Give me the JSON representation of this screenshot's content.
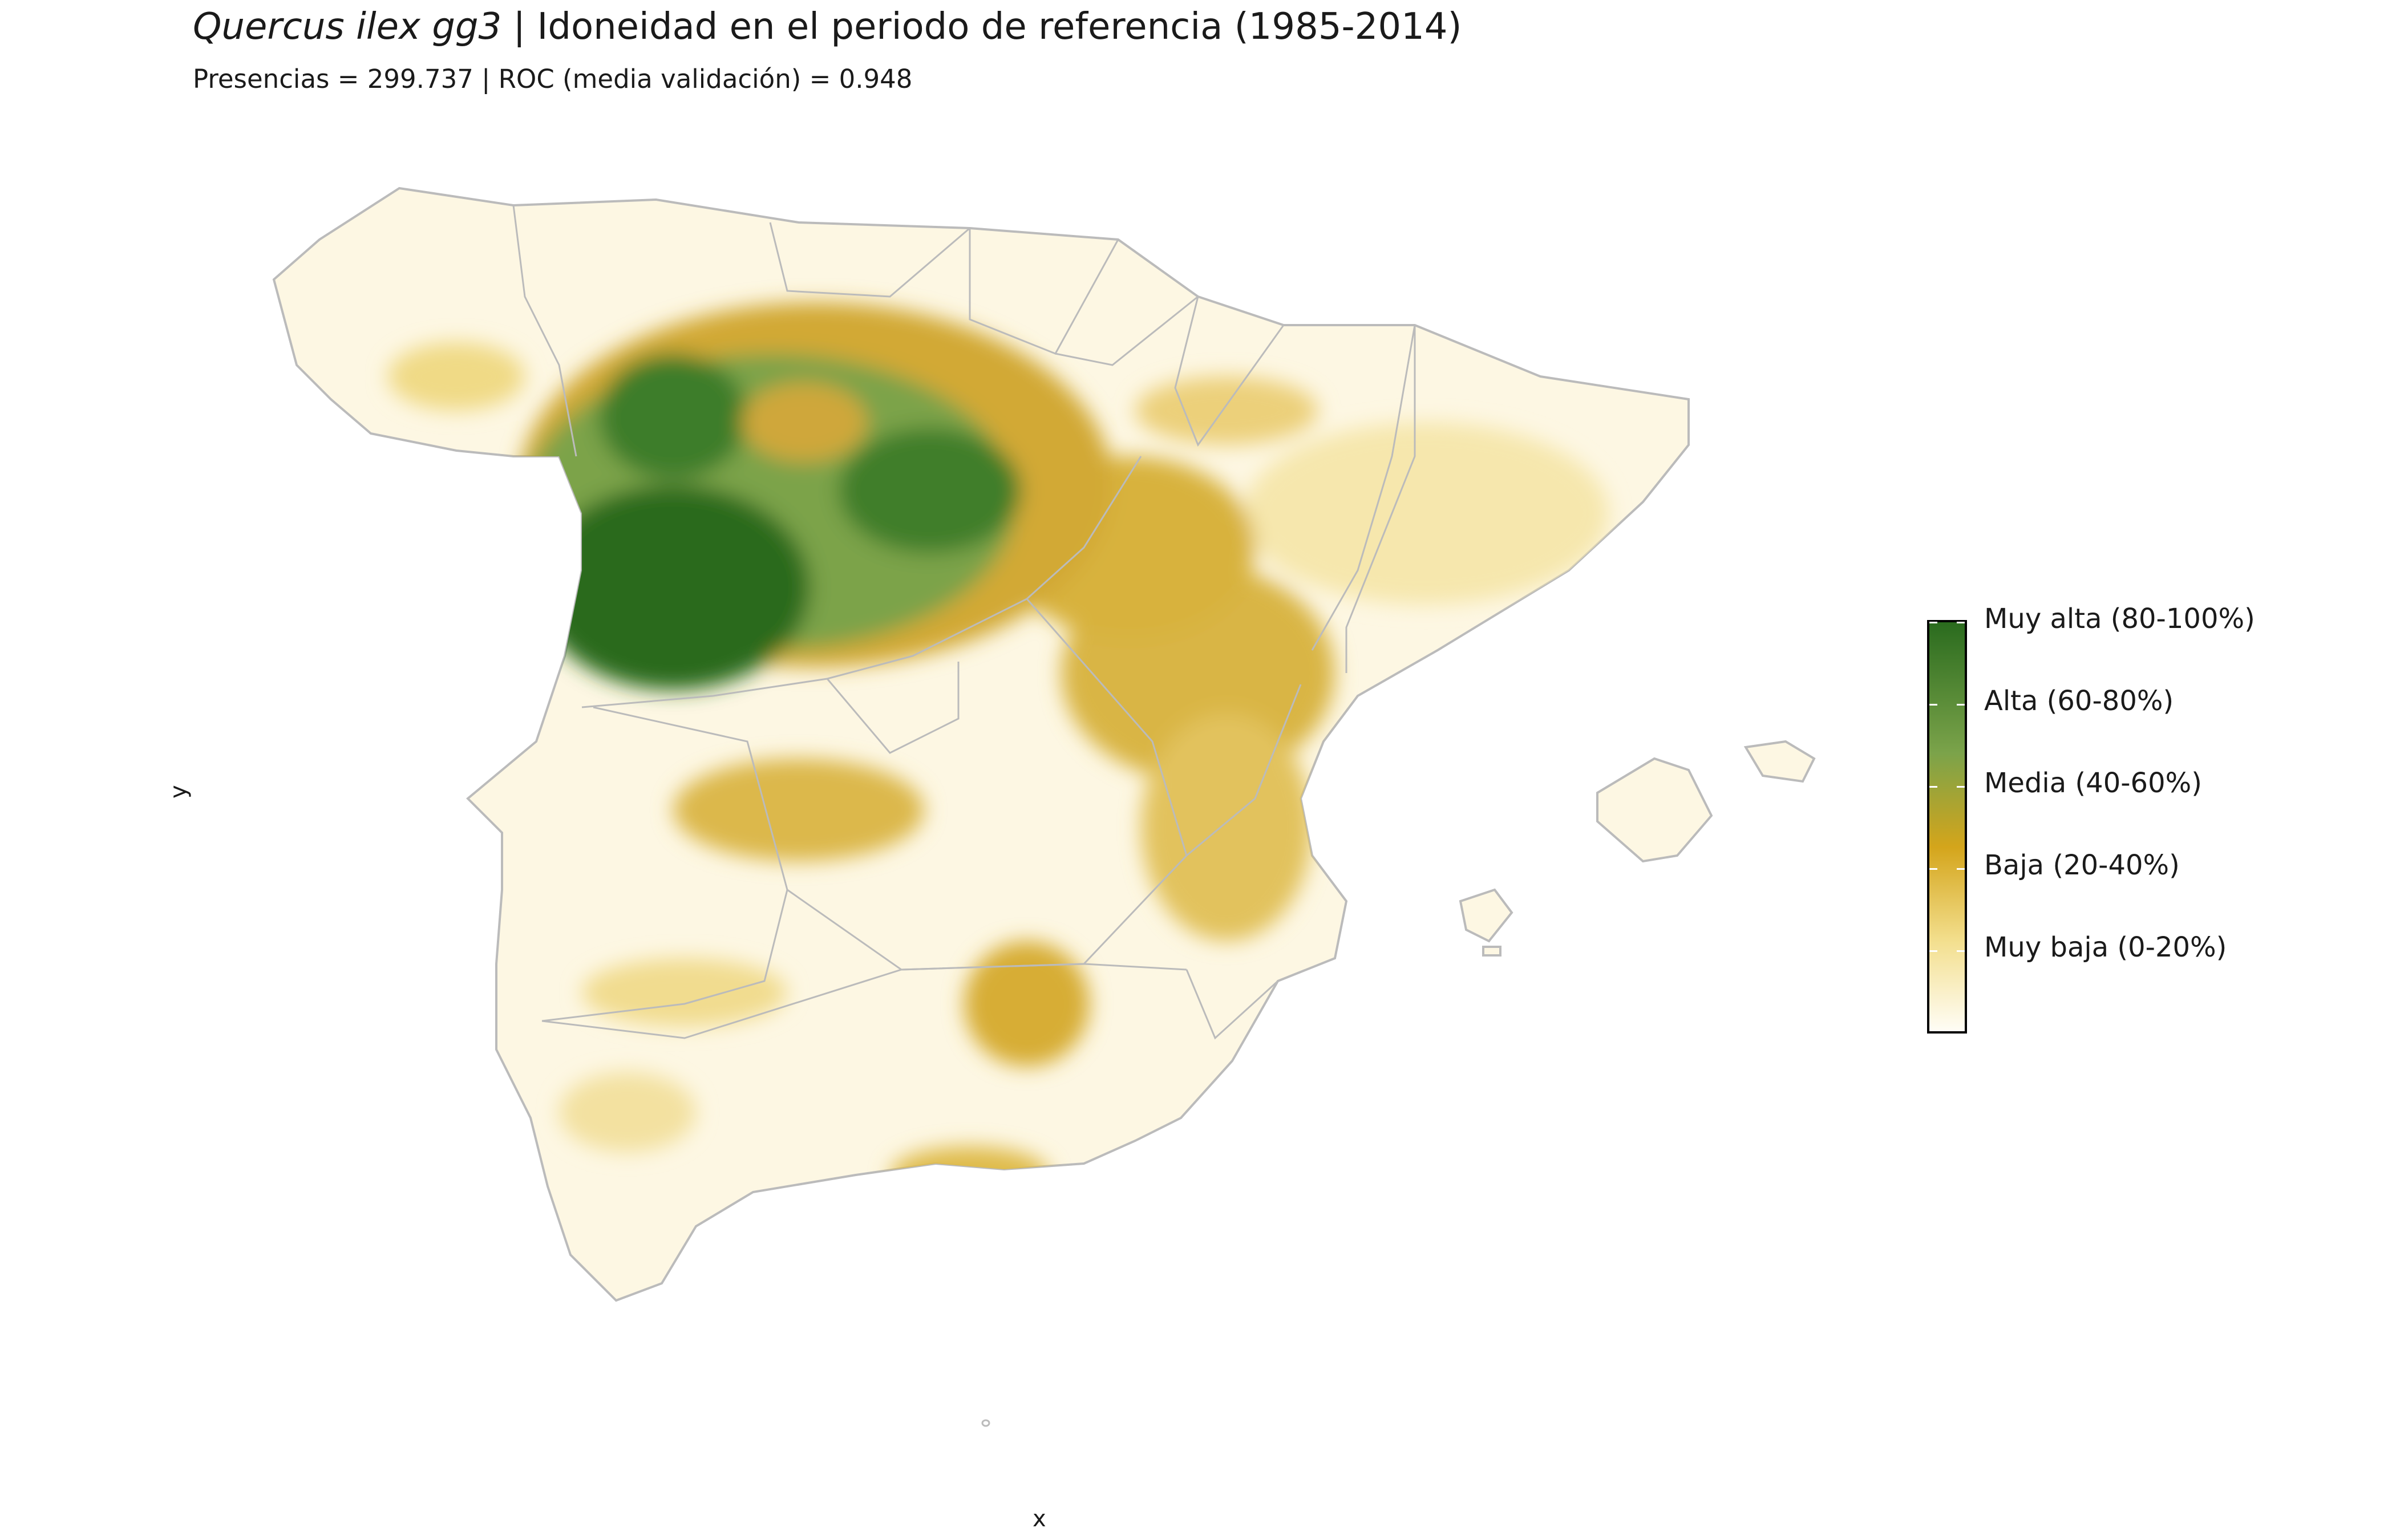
{
  "title": {
    "species": "Quercus ilex gg3",
    "separator": " | ",
    "text": "Idoneidad en el periodo de referencia (1985-2014)"
  },
  "subtitle": "Presencias = 299.737  |  ROC (media validación) = 0.948",
  "axes": {
    "x_label": "x",
    "y_label": "y"
  },
  "legend": {
    "colors": [
      "#fffdf6",
      "#f3df8e",
      "#d4a51b",
      "#7ba34a",
      "#2a6b1e"
    ],
    "entries": [
      "Muy alta (80-100%)",
      "Alta (60-80%)",
      "Media (40-60%)",
      "Baja (20-40%)",
      "Muy baja (0-20%)"
    ]
  },
  "map": {
    "background_color": "#fdf7e3",
    "border_color": "#bbbbbb"
  }
}
